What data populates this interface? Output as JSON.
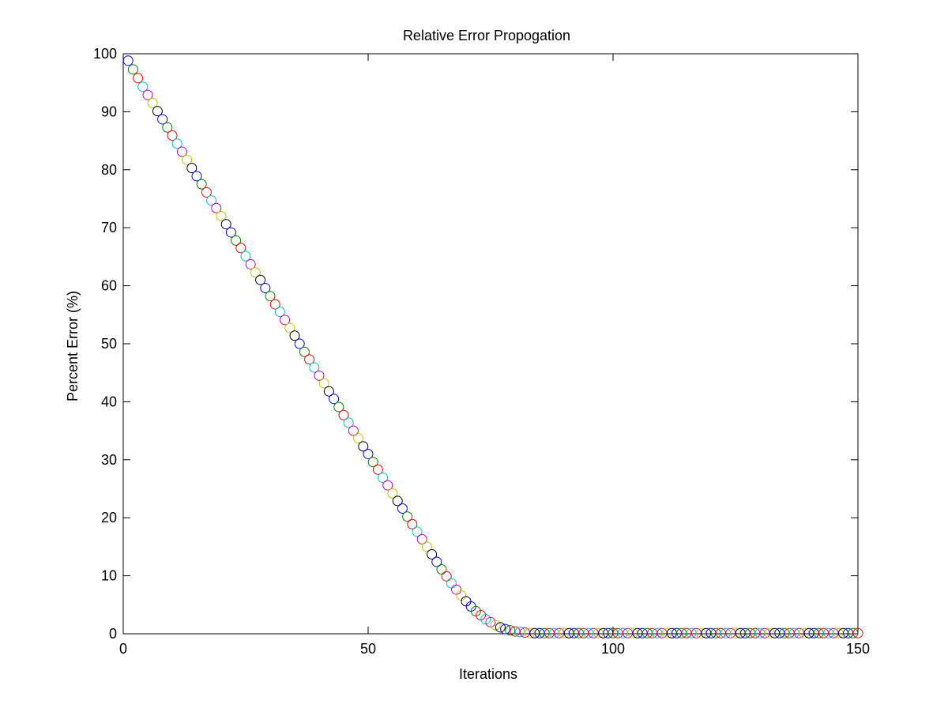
{
  "chart_data": {
    "type": "scatter",
    "title": "Relative Error Propogation",
    "xlabel": "Iterations",
    "ylabel": "Percent Error (%)",
    "xlim": [
      0,
      150
    ],
    "ylim": [
      0,
      100
    ],
    "xticks": [
      0,
      50,
      100,
      150
    ],
    "yticks": [
      0,
      10,
      20,
      30,
      40,
      50,
      60,
      70,
      80,
      90,
      100
    ],
    "grid": false,
    "legend": "none",
    "marker": "open-circle",
    "marker_colors": [
      "#0000ff",
      "#008000",
      "#ff0000",
      "#00bfbf",
      "#bf00bf",
      "#bfbf00",
      "#000000"
    ],
    "series": [
      {
        "x": [
          1,
          2,
          3,
          4,
          5,
          6,
          7,
          8,
          9,
          10,
          11,
          12,
          13,
          14,
          15,
          16,
          17,
          18,
          19,
          20,
          21,
          22,
          23,
          24,
          25,
          26,
          27,
          28,
          29,
          30,
          31,
          32,
          33,
          34,
          35,
          36,
          37,
          38,
          39,
          40,
          41,
          42,
          43,
          44,
          45,
          46,
          47,
          48,
          49,
          50,
          51,
          52,
          53,
          54,
          55,
          56,
          57,
          58,
          59,
          60,
          61,
          62,
          63,
          64,
          65,
          66,
          67,
          68,
          69,
          70,
          71,
          72,
          73,
          74,
          75,
          76,
          77,
          78,
          79,
          80,
          81,
          82,
          83,
          84,
          85,
          86,
          87,
          88,
          89,
          90,
          91,
          92,
          93,
          94,
          95,
          96,
          97,
          98,
          99,
          100,
          101,
          102,
          103,
          104,
          105,
          106,
          107,
          108,
          109,
          110,
          111,
          112,
          113,
          114,
          115,
          116,
          117,
          118,
          119,
          120,
          121,
          122,
          123,
          124,
          125,
          126,
          127,
          128,
          129,
          130,
          131,
          132,
          133,
          134,
          135,
          136,
          137,
          138,
          139,
          140,
          141,
          142,
          143,
          144,
          145,
          146,
          147,
          148,
          149,
          150
        ],
        "y": [
          98.8,
          97.3,
          95.8,
          94.3,
          92.9,
          91.5,
          90.1,
          88.7,
          87.3,
          85.9,
          84.5,
          83.1,
          81.7,
          80.3,
          78.9,
          77.5,
          76.1,
          74.7,
          73.4,
          72.0,
          70.6,
          69.2,
          67.8,
          66.5,
          65.1,
          63.7,
          62.3,
          61.0,
          59.6,
          58.2,
          56.8,
          55.5,
          54.1,
          52.7,
          51.4,
          50.0,
          48.6,
          47.3,
          45.9,
          44.5,
          43.2,
          41.8,
          40.5,
          39.1,
          37.7,
          36.4,
          35.0,
          33.7,
          32.3,
          31.0,
          29.6,
          28.3,
          26.9,
          25.6,
          24.2,
          22.9,
          21.6,
          20.2,
          18.9,
          17.6,
          16.3,
          15.0,
          13.7,
          12.4,
          11.1,
          9.9,
          8.7,
          7.6,
          6.6,
          5.6,
          4.7,
          3.9,
          3.2,
          2.5,
          2.0,
          1.5,
          1.1,
          0.8,
          0.6,
          0.4,
          0.3,
          0.2,
          0.1,
          0.1,
          0.1,
          0.1,
          0.1,
          0.1,
          0.1,
          0.1,
          0.1,
          0.1,
          0.1,
          0.1,
          0.1,
          0.1,
          0.1,
          0.1,
          0.1,
          0.1,
          0.1,
          0.1,
          0.1,
          0.1,
          0.1,
          0.1,
          0.1,
          0.1,
          0.1,
          0.1,
          0.1,
          0.1,
          0.1,
          0.1,
          0.1,
          0.1,
          0.1,
          0.1,
          0.1,
          0.1,
          0.1,
          0.1,
          0.1,
          0.1,
          0.1,
          0.1,
          0.1,
          0.1,
          0.1,
          0.1,
          0.1,
          0.1,
          0.1,
          0.1,
          0.1,
          0.1,
          0.1,
          0.1,
          0.1,
          0.1,
          0.1,
          0.1,
          0.1,
          0.1,
          0.1,
          0.1,
          0.1,
          0.1,
          0.1,
          0.1
        ]
      }
    ]
  }
}
